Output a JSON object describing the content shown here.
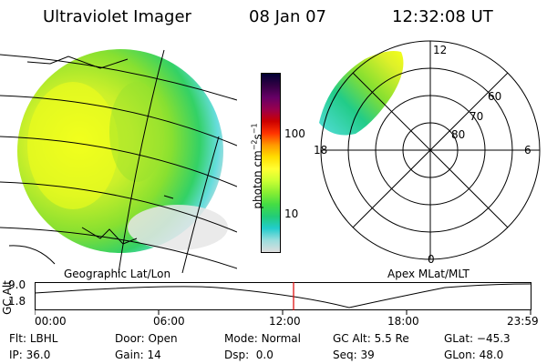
{
  "header": {
    "instrument": "Ultraviolet Imager",
    "date": "08 Jan 07",
    "time": "12:32:08 UT"
  },
  "left_panel": {
    "label": "Geographic Lat/Lon"
  },
  "right_panel": {
    "label": "Apex MLat/MLT",
    "mlt_labels": [
      "12",
      "18",
      "6",
      "0"
    ],
    "lat_labels": [
      "60",
      "70",
      "80"
    ]
  },
  "colorbar": {
    "unit_label": "photon cm",
    "unit_sup1": "−2",
    "unit_mid": "s",
    "unit_sup2": "−1",
    "ticks": [
      "100",
      "10"
    ],
    "colors": [
      "#000033",
      "#330044",
      "#660066",
      "#99004d",
      "#cc0000",
      "#ff3300",
      "#ff9900",
      "#ffdd00",
      "#ffff33",
      "#ccff33",
      "#88ee33",
      "#44dd44",
      "#22cc77",
      "#22cccc",
      "#99dddd",
      "#dddddd"
    ]
  },
  "altitude_plot": {
    "ylabel": "GC Alt",
    "ymax": "9.0",
    "ymin": "1.8",
    "time_ticks": [
      "00:00",
      "06:00",
      "12:00",
      "18:00",
      "23:59"
    ],
    "current_time_fraction": 0.522
  },
  "info": {
    "filter_label": "Flt:",
    "filter_value": "LBHL",
    "ip_label": "IP:",
    "ip_value": "36.0",
    "door_label": "Door:",
    "door_value": "Open",
    "gain_label": "Gain:",
    "gain_value": "14",
    "mode_label": "Mode:",
    "mode_value": "Normal",
    "dsp_label": "Dsp:",
    "dsp_value": "0.0",
    "gcalt_label": "GC Alt:",
    "gcalt_value": "5.5 Re",
    "seq_label": "Seq:",
    "seq_value": "39",
    "glat_label": "GLat:",
    "glat_value": "−45.3",
    "glon_label": "GLon:",
    "glon_value": "48.0"
  }
}
